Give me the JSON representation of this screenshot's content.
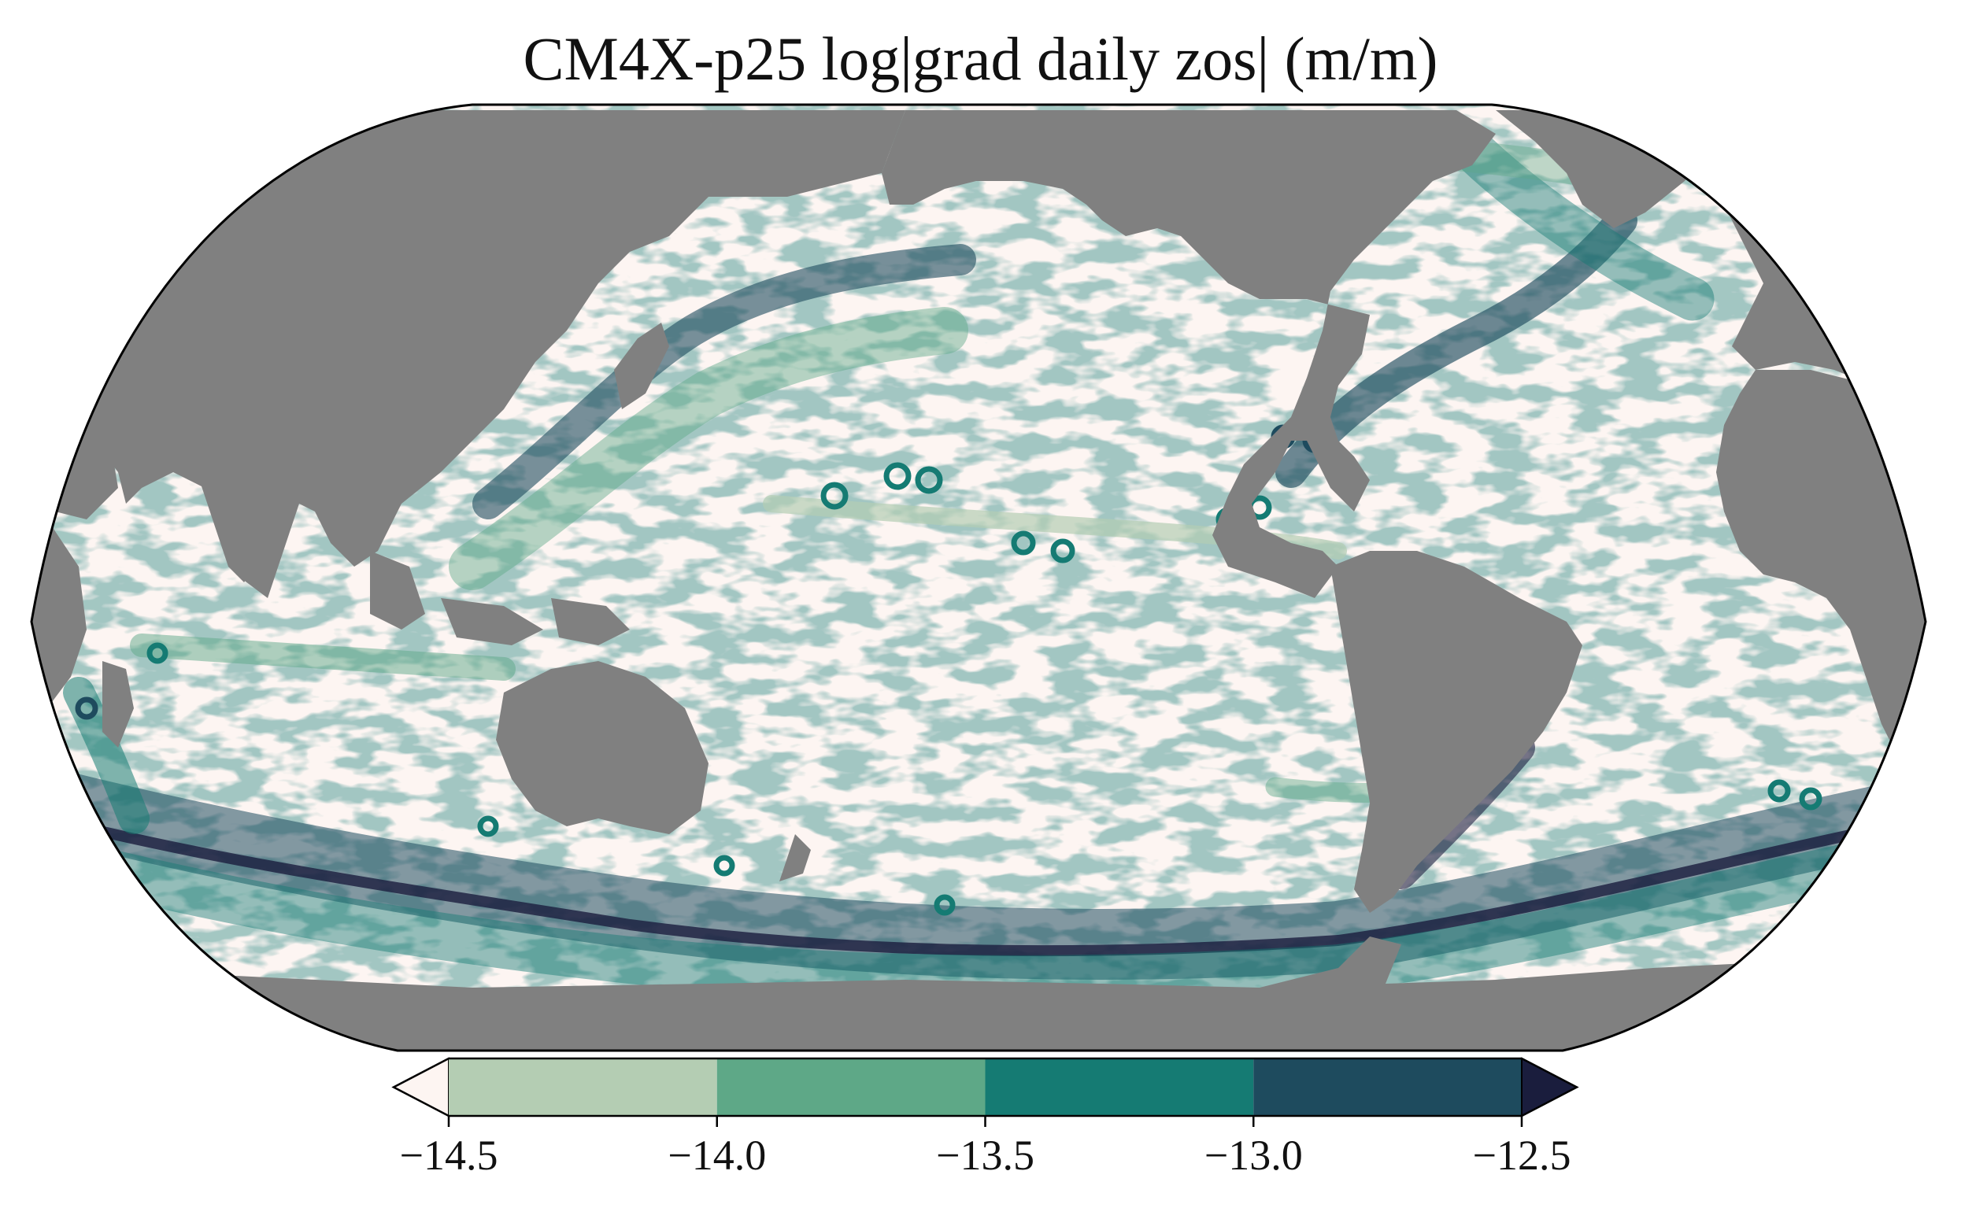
{
  "title": "CM4X-p25 log|grad daily zos| (m/m)",
  "map": {
    "projection": "Robinson",
    "land_color": "#808080",
    "ocean_low_color": "#fdf5f2"
  },
  "colorbar": {
    "extend": "both",
    "ticks": [
      "−14.5",
      "−14.0",
      "−13.5",
      "−13.0",
      "−12.5"
    ],
    "levels": [
      -14.5,
      -14.0,
      -13.5,
      -13.0,
      -12.5
    ],
    "colors": {
      "under": "#fdf5f2",
      "bins": [
        "#b4cdb3",
        "#5ea887",
        "#157b73",
        "#1e4b5e"
      ],
      "over": "#1a1d3d"
    }
  }
}
